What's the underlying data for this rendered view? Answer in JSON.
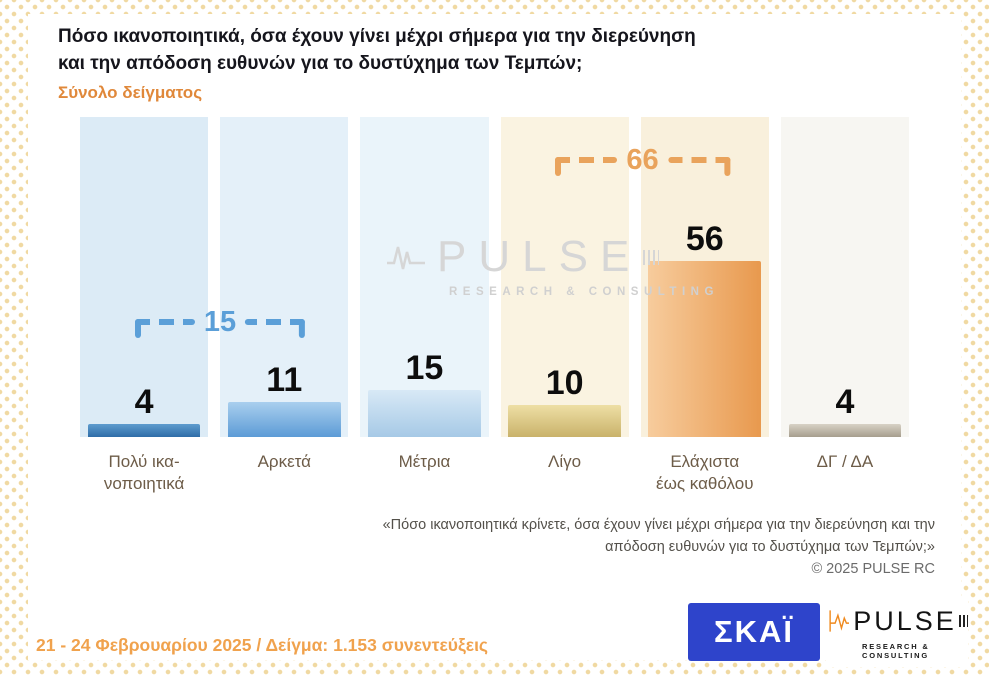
{
  "header": {
    "title_line1": "Πόσο ικανοποιητικά, όσα έχουν γίνει μέχρι σήμερα για την διερεύνηση",
    "title_line2": "και την απόδοση ευθυνών για το δυστύχημα των Τεμπών;",
    "subtitle": "Σύνολο δείγματος"
  },
  "chart_data": {
    "type": "bar",
    "title": "Πόσο ικανοποιητικά, όσα έχουν γίνει μέχρι σήμερα για την διερεύνηση και την απόδοση ευθυνών για το δυστύχημα των Τεμπών; (Σύνολο δείγματος)",
    "categories": [
      "Πολύ ικανοποιητικά",
      "Αρκετά",
      "Μέτρια",
      "Λίγο",
      "Ελάχιστα έως καθόλου",
      "ΔΓ / ΔΑ"
    ],
    "values": [
      4,
      11,
      15,
      10,
      56,
      4
    ],
    "ylim": [
      0,
      60
    ],
    "grid": false,
    "legend": "none",
    "annotations": [
      {
        "label": 15,
        "covers": [
          "Πολύ ικανοποιητικά",
          "Αρκετά"
        ],
        "color": "#5b9fd8"
      },
      {
        "label": 66,
        "covers": [
          "Λίγο",
          "Ελάχιστα έως καθόλου"
        ],
        "color": "#e9a35c"
      }
    ]
  },
  "display": {
    "columns": [
      {
        "label1": "Πολύ ικα-",
        "label2": "νοποιητικά",
        "band": "#dcebf6",
        "color1": "#5e9cce",
        "color2": "#2f6da7",
        "dir": "180deg"
      },
      {
        "label1": "Αρκετά",
        "band": "#e4f0f9",
        "color1": "#a9cfee",
        "color2": "#5c9bd6",
        "dir": "180deg"
      },
      {
        "label1": "Μέτρια",
        "band": "#eaf4fa",
        "color1": "#d8e9f6",
        "color2": "#a6c9e6",
        "dir": "180deg"
      },
      {
        "label1": "Λίγο",
        "band": "#faf3e1",
        "color1": "#eedfa5",
        "color2": "#c9b26a",
        "dir": "180deg"
      },
      {
        "label1": "Ελάχιστα",
        "label2": "έως καθόλου",
        "band": "#f9f0dc",
        "color1": "#f7cc9d",
        "color2": "#e8994e",
        "dir": "90deg"
      },
      {
        "label1": "ΔΓ / ΔΑ",
        "band": "#f7f6f2",
        "color1": "#d8d2c6",
        "color2": "#a69e8e",
        "dir": "180deg"
      }
    ]
  },
  "watermark": {
    "text": "PULSE",
    "sub": "RESEARCH & CONSULTING"
  },
  "footnote": {
    "line1": "«Πόσο ικανοποιητικά κρίνετε, όσα έχουν γίνει μέχρι σήμερα για την διερεύνηση και την",
    "line2": "απόδοση ευθυνών για το δυστύχημα των Τεμπών;»",
    "copyright": "©  2025  PULSE RC"
  },
  "footer": {
    "text": "21 - 24 Φεβρουαρίου 2025  /  Δείγμα:  1.153 συνεντεύξεις"
  },
  "logos": {
    "skai": "ΣΚΑΪ",
    "pulse": "PULSE",
    "pulse_sub": "RESEARCH & CONSULTING"
  }
}
